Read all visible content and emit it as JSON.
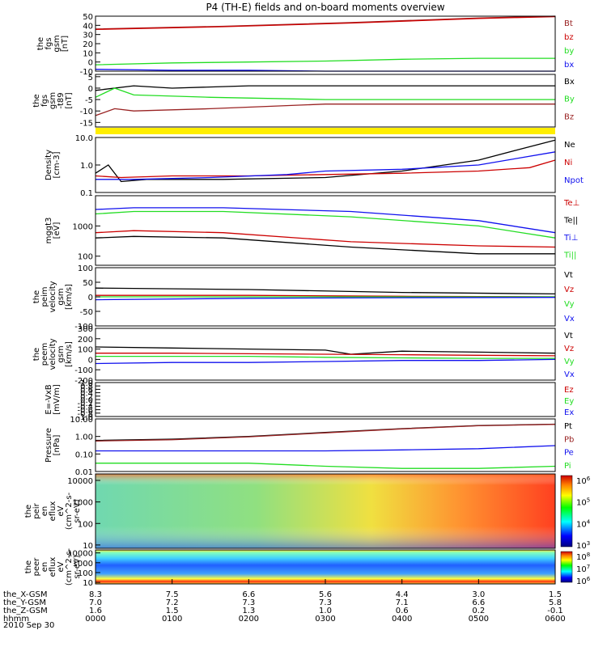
{
  "title": "P4 (TH-E) fields and on-board moments overview",
  "date": "2010 Sep 30",
  "colors": {
    "black": "#000000",
    "red": "#cc0000",
    "green": "#22dd22",
    "blue": "#1010ee",
    "darkred": "#992222",
    "yellow": "#ffee00"
  },
  "colorbar1_labels": [
    "10^6",
    "10^5",
    "10^4",
    "10^3"
  ],
  "colorbar2_labels": [
    "10^8",
    "10^7",
    "10^6"
  ],
  "chart_data": [
    {
      "type": "line",
      "id": "fgs",
      "ylabel": [
        "the",
        "fgs",
        "gsm",
        "[nT]"
      ],
      "ylim": [
        -10,
        50
      ],
      "yticks": [
        50,
        40,
        30,
        20,
        10,
        0,
        -10
      ],
      "series": [
        {
          "name": "Bt",
          "color": "#992222",
          "x": [
            0,
            100,
            200,
            260,
            300,
            330,
            360
          ],
          "values": [
            36,
            39,
            43,
            46,
            48,
            49,
            50
          ]
        },
        {
          "name": "bz",
          "color": "#cc0000",
          "x": [
            0,
            100,
            200,
            260,
            300,
            330,
            360
          ],
          "values": [
            35.5,
            38.5,
            42.5,
            45.5,
            47.5,
            48.5,
            49.5
          ]
        },
        {
          "name": "by",
          "color": "#22dd22",
          "x": [
            0,
            60,
            120,
            180,
            240,
            300,
            360
          ],
          "values": [
            -3,
            -1,
            0,
            1,
            3,
            4,
            4
          ]
        },
        {
          "name": "bx",
          "color": "#1010ee",
          "x": [
            0,
            60,
            120,
            180,
            240,
            300,
            360
          ],
          "values": [
            -8,
            -9,
            -9,
            -10,
            -10,
            -10,
            -10
          ]
        }
      ]
    },
    {
      "type": "line",
      "id": "fgs-dsl",
      "ylabel": [
        "the",
        "fgs",
        "gsm",
        "-t89",
        "[nT]"
      ],
      "ylim": [
        -17,
        6
      ],
      "yticks": [
        5,
        0,
        -5,
        -10,
        -15
      ],
      "series": [
        {
          "name": "Bx",
          "color": "#000000",
          "x": [
            0,
            30,
            60,
            120,
            180,
            360
          ],
          "values": [
            -1,
            1,
            0,
            1,
            1,
            1
          ]
        },
        {
          "name": "By",
          "color": "#22dd22",
          "x": [
            0,
            15,
            30,
            90,
            180,
            360
          ],
          "values": [
            -4,
            0,
            -3,
            -4,
            -5,
            -5
          ]
        },
        {
          "name": "Bz",
          "color": "#992222",
          "x": [
            0,
            15,
            30,
            90,
            180,
            360
          ],
          "values": [
            -12,
            -9,
            -10,
            -9,
            -7,
            -7
          ]
        }
      ]
    },
    {
      "type": "line",
      "id": "density",
      "ylabel": [
        "Density",
        "[cm-3]"
      ],
      "yscale": "log",
      "ylim": [
        0.1,
        10
      ],
      "ytick_labels": [
        "10.0",
        "1.0",
        "0.1"
      ],
      "series": [
        {
          "name": "Ne",
          "color": "#000000",
          "x": [
            0,
            10,
            20,
            40,
            100,
            180,
            240,
            300,
            330,
            360
          ],
          "values": [
            0.5,
            1.0,
            0.25,
            0.3,
            0.3,
            0.35,
            0.6,
            1.5,
            3.5,
            8
          ]
        },
        {
          "name": "Ni",
          "color": "#cc0000",
          "x": [
            0,
            20,
            60,
            120,
            180,
            240,
            300,
            340,
            360
          ],
          "values": [
            0.4,
            0.35,
            0.4,
            0.4,
            0.45,
            0.5,
            0.6,
            0.8,
            1.5
          ]
        },
        {
          "name": "Npot",
          "color": "#1010ee",
          "x": [
            0,
            30,
            90,
            150,
            180,
            240,
            300,
            360
          ],
          "values": [
            0.3,
            0.3,
            0.35,
            0.45,
            0.6,
            0.7,
            1.0,
            3
          ]
        }
      ]
    },
    {
      "type": "line",
      "id": "temperature",
      "ylabel": [
        "mggt3",
        "[eV]"
      ],
      "yscale": "log",
      "ylim": [
        50,
        10000
      ],
      "ytick_labels": [
        "1000",
        "100"
      ],
      "series": [
        {
          "name": "Te⊥",
          "color": "#cc0000",
          "x": [
            0,
            30,
            100,
            200,
            300,
            360
          ],
          "values": [
            600,
            700,
            600,
            300,
            220,
            200
          ]
        },
        {
          "name": "Te||",
          "color": "#000000",
          "x": [
            0,
            30,
            100,
            200,
            300,
            360
          ],
          "values": [
            400,
            450,
            400,
            200,
            120,
            120
          ]
        },
        {
          "name": "Ti⊥",
          "color": "#1010ee",
          "x": [
            0,
            30,
            100,
            200,
            300,
            360
          ],
          "values": [
            3500,
            4000,
            4000,
            3000,
            1500,
            600
          ]
        },
        {
          "name": "Ti||",
          "color": "#22dd22",
          "x": [
            0,
            30,
            100,
            200,
            300,
            360
          ],
          "values": [
            2500,
            3000,
            3000,
            2000,
            1000,
            400
          ]
        }
      ]
    },
    {
      "type": "line",
      "id": "velocity-esa",
      "ylabel": [
        "the",
        "peim",
        "velocity",
        "gsm",
        "[km/s]"
      ],
      "ylim": [
        -100,
        100
      ],
      "yticks": [
        100,
        50,
        0,
        -50,
        -100
      ],
      "series": [
        {
          "name": "Vt",
          "color": "#000000",
          "x": [
            0,
            120,
            240,
            360
          ],
          "values": [
            30,
            25,
            15,
            10
          ]
        },
        {
          "name": "Vz",
          "color": "#cc0000",
          "x": [
            0,
            120,
            240,
            360
          ],
          "values": [
            5,
            5,
            2,
            0
          ]
        },
        {
          "name": "Vy",
          "color": "#22dd22",
          "x": [
            0,
            120,
            240,
            360
          ],
          "values": [
            0,
            0,
            0,
            0
          ]
        },
        {
          "name": "Vx",
          "color": "#1010ee",
          "x": [
            0,
            120,
            240,
            360
          ],
          "values": [
            -10,
            -5,
            -3,
            -2
          ]
        }
      ]
    },
    {
      "type": "line",
      "id": "velocity-esb",
      "ylabel": [
        "the",
        "peem",
        "velocity",
        "gsm",
        "[km/s]"
      ],
      "ylim": [
        -200,
        300
      ],
      "yticks": [
        300,
        200,
        100,
        0,
        -100,
        -200
      ],
      "series": [
        {
          "name": "Vt",
          "color": "#000000",
          "x": [
            0,
            60,
            120,
            180,
            200,
            240,
            300,
            360
          ],
          "values": [
            120,
            110,
            100,
            90,
            50,
            80,
            70,
            60
          ]
        },
        {
          "name": "Vz",
          "color": "#cc0000",
          "x": [
            0,
            60,
            120,
            180,
            240,
            300,
            360
          ],
          "values": [
            60,
            60,
            55,
            50,
            45,
            40,
            35
          ]
        },
        {
          "name": "Vy",
          "color": "#22dd22",
          "x": [
            0,
            60,
            120,
            180,
            240,
            300,
            360
          ],
          "values": [
            30,
            30,
            30,
            20,
            15,
            10,
            10
          ]
        },
        {
          "name": "Vx",
          "color": "#1010ee",
          "x": [
            0,
            60,
            120,
            180,
            240,
            300,
            360
          ],
          "values": [
            -40,
            -30,
            -30,
            -20,
            -10,
            -10,
            0
          ]
        }
      ]
    },
    {
      "type": "line",
      "id": "efield",
      "ylabel": [
        "E=-VxB",
        "[mV/m]"
      ],
      "ylim": [
        -1,
        1
      ],
      "yticks": [
        1.0,
        0.8,
        0.6,
        0.4,
        0.2,
        0.0,
        -0.2,
        -0.4,
        -0.6,
        -0.8,
        -1.0
      ],
      "ytick_labels": [
        "1.0",
        "0.8",
        "0.6",
        "0.4",
        "0.2",
        "0.0",
        "-0.2",
        "-0.4",
        "-0.6",
        "-0.8",
        "-1.0"
      ],
      "series": [
        {
          "name": "Ez",
          "color": "#cc0000",
          "x": [],
          "values": []
        },
        {
          "name": "Ey",
          "color": "#22dd22",
          "x": [],
          "values": []
        },
        {
          "name": "Ex",
          "color": "#1010ee",
          "x": [],
          "values": []
        }
      ]
    },
    {
      "type": "line",
      "id": "pressure",
      "ylabel": [
        "Pressure",
        "[nPa]"
      ],
      "yscale": "log",
      "ylim": [
        0.01,
        10
      ],
      "ytick_labels": [
        "10.00",
        "1.00",
        "0.10",
        "0.01"
      ],
      "series": [
        {
          "name": "Pt",
          "color": "#000000",
          "x": [
            0,
            60,
            120,
            180,
            240,
            300,
            360
          ],
          "values": [
            0.6,
            0.7,
            1.0,
            1.7,
            2.8,
            4.2,
            5
          ]
        },
        {
          "name": "Pb",
          "color": "#992222",
          "x": [
            0,
            60,
            120,
            180,
            240,
            300,
            360
          ],
          "values": [
            0.55,
            0.65,
            0.95,
            1.6,
            2.7,
            4.1,
            4.9
          ]
        },
        {
          "name": "Pe",
          "color": "#1010ee",
          "x": [
            0,
            60,
            120,
            180,
            240,
            300,
            360
          ],
          "values": [
            0.15,
            0.15,
            0.15,
            0.15,
            0.17,
            0.2,
            0.3
          ]
        },
        {
          "name": "Pi",
          "color": "#22dd22",
          "x": [
            0,
            60,
            120,
            180,
            240,
            300,
            360
          ],
          "values": [
            0.03,
            0.03,
            0.03,
            0.02,
            0.015,
            0.015,
            0.02
          ]
        }
      ]
    },
    {
      "type": "heatmap",
      "id": "peir-spectrogram",
      "ylabel": [
        "the",
        "peir",
        "en",
        "eflux",
        "eV",
        "(cm^2-s-",
        "sr-eV)"
      ],
      "yscale": "log",
      "ylim": [
        7,
        20000
      ],
      "ytick_labels": [
        "10000",
        "1000",
        "100",
        "10"
      ]
    },
    {
      "type": "heatmap",
      "id": "peer-spectrogram",
      "ylabel": [
        "the",
        "peer",
        "en",
        "eflux",
        "eV",
        "(cm^2-s-",
        "sr-eV)"
      ],
      "yscale": "log",
      "ylim": [
        7,
        20000
      ],
      "ytick_labels": [
        "10000",
        "1000",
        "100",
        "10"
      ]
    }
  ],
  "xaxis": {
    "rows": [
      {
        "label": "the_X-GSM",
        "values": [
          "8.3",
          "7.5",
          "6.6",
          "5.6",
          "4.4",
          "3.0",
          "1.5"
        ]
      },
      {
        "label": "the_Y-GSM",
        "values": [
          "7.0",
          "7.2",
          "7.3",
          "7.3",
          "7.1",
          "6.6",
          "5.8"
        ]
      },
      {
        "label": "the_Z-GSM",
        "values": [
          "1.6",
          "1.5",
          "1.3",
          "1.0",
          "0.6",
          "0.2",
          "-0.1"
        ]
      },
      {
        "label": "hhmm",
        "values": [
          "0000",
          "0100",
          "0200",
          "0300",
          "0400",
          "0500",
          "0600"
        ]
      }
    ]
  }
}
